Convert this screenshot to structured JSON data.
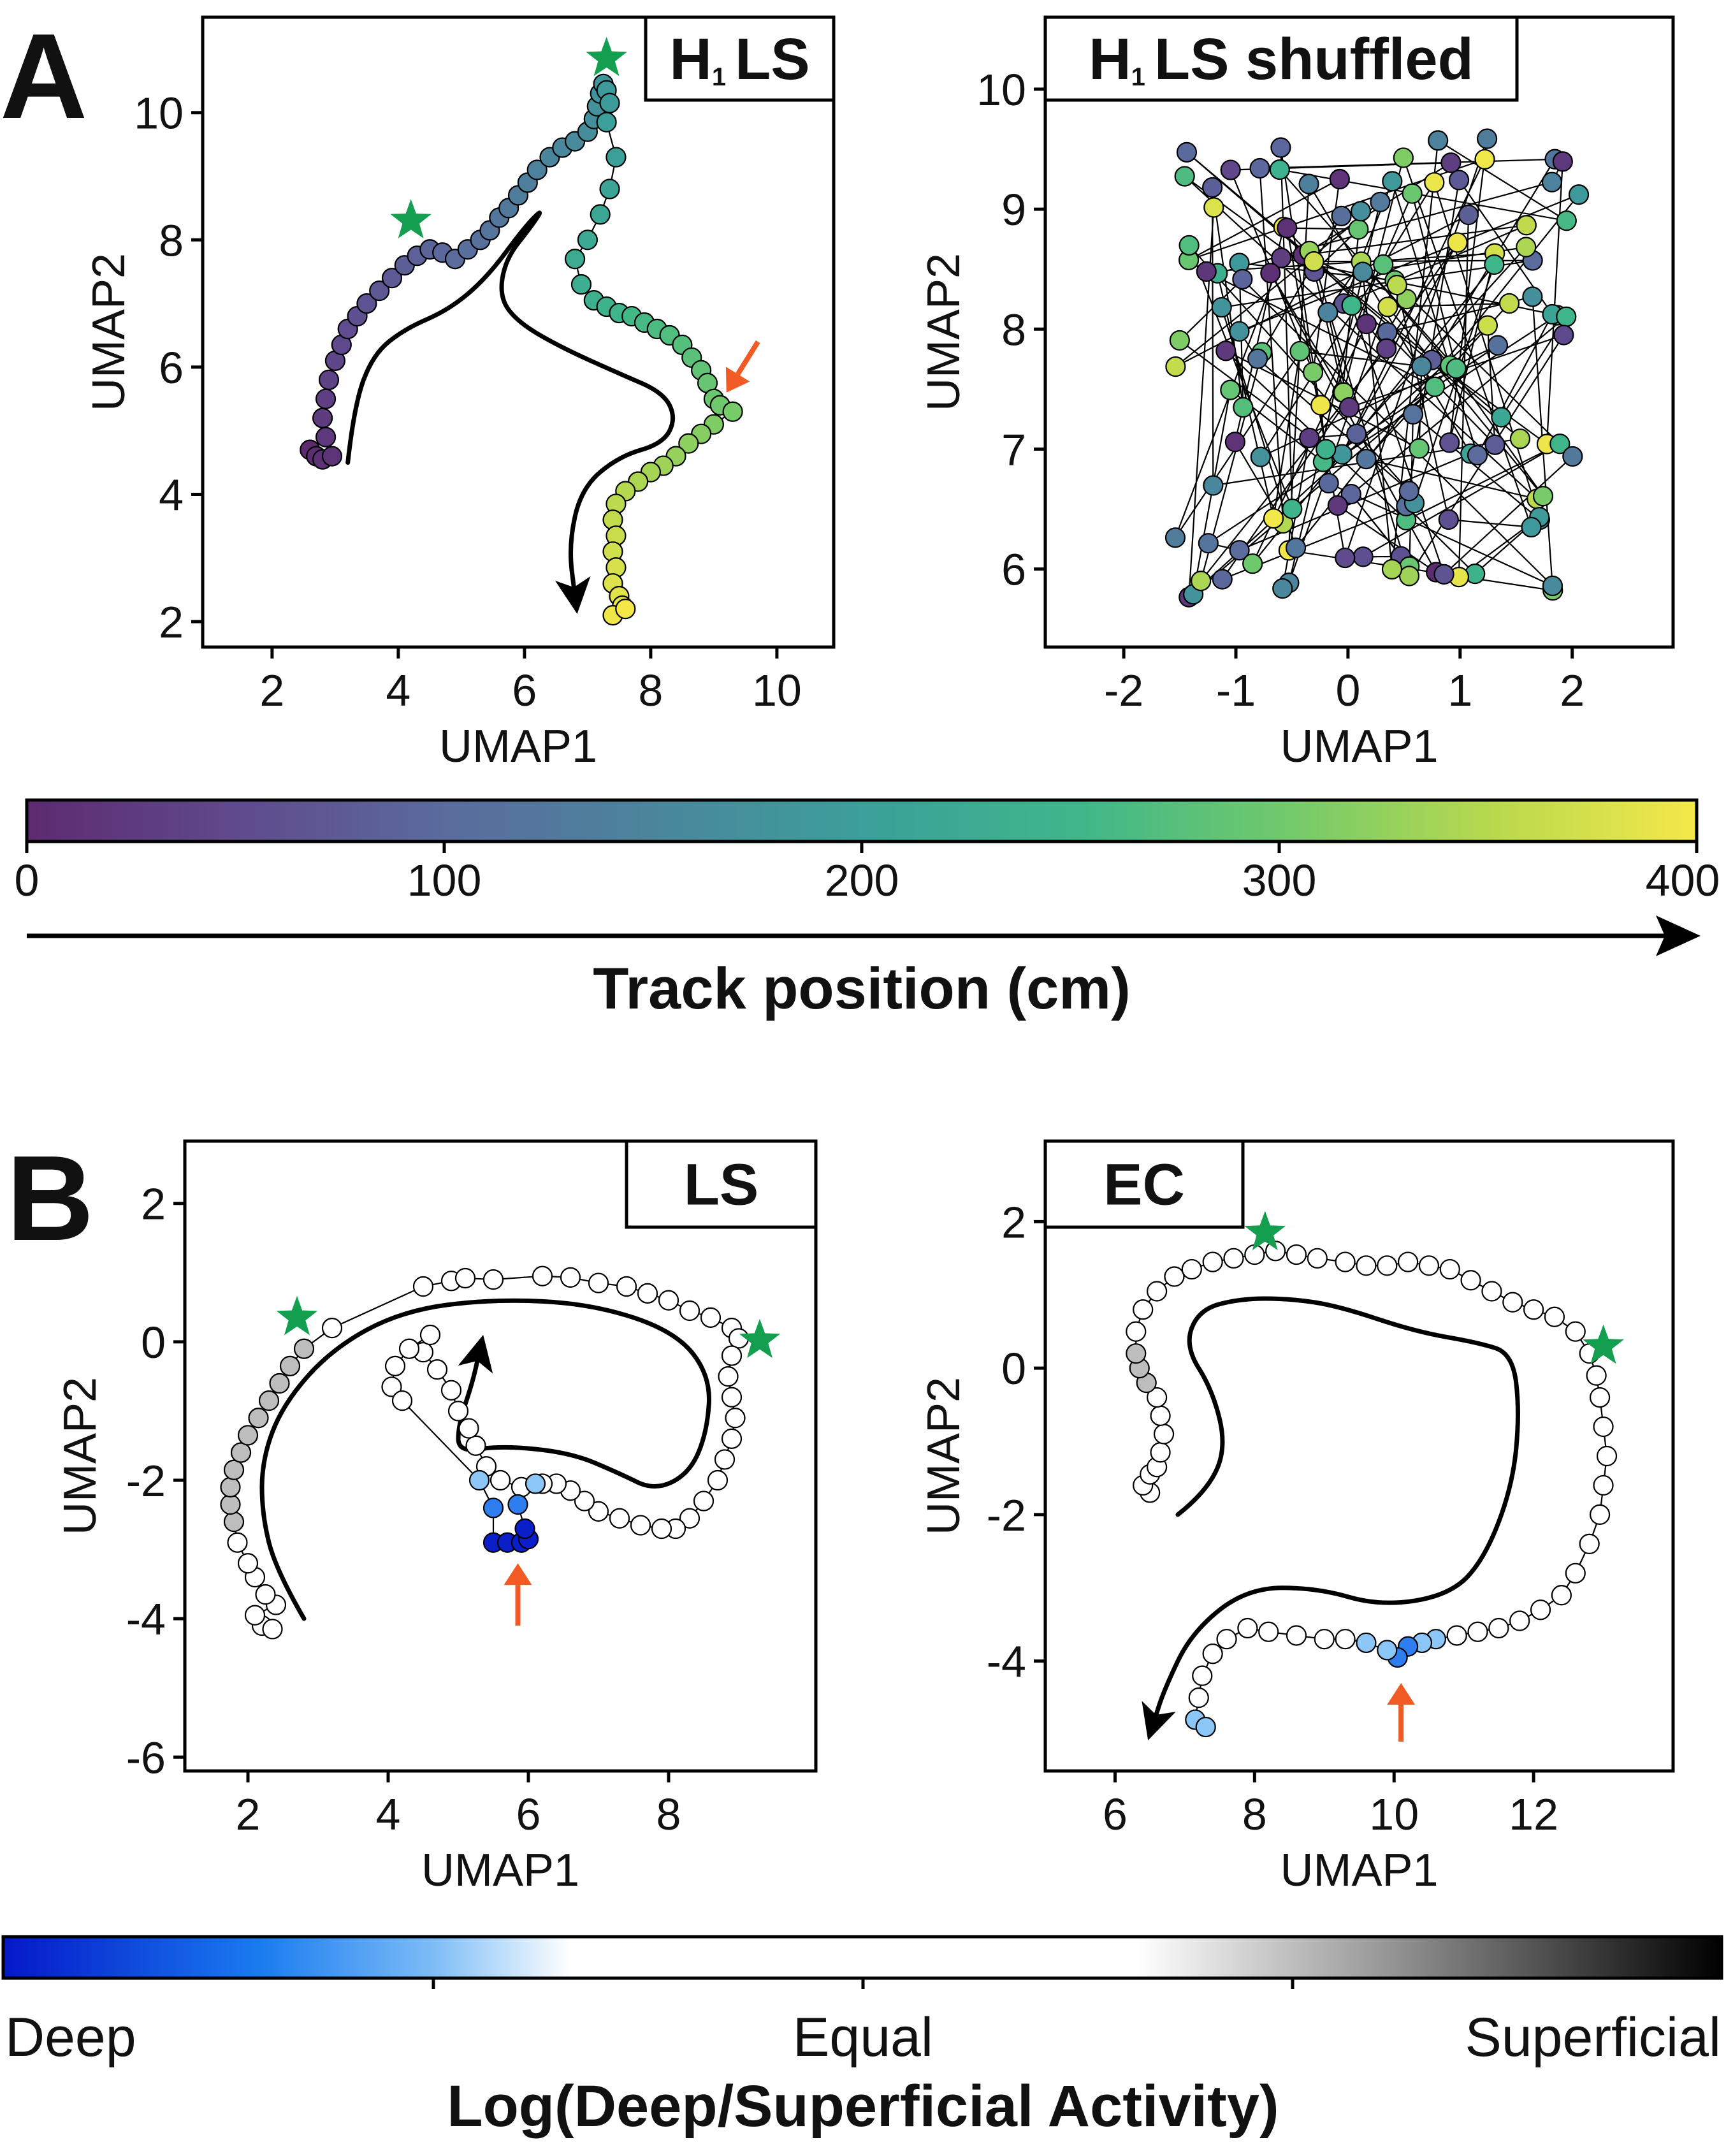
{
  "panel_labels": {
    "a": "A",
    "b": "B"
  },
  "colors": {
    "star": "#139e50",
    "arrow": "#f15a24",
    "trajectory": "#000000"
  },
  "colorbars": {
    "track": {
      "ticks": [
        "0",
        "100",
        "200",
        "300",
        "400"
      ],
      "label": "Track position (cm)",
      "range": [
        0,
        400
      ],
      "colormap": "viridis"
    },
    "ratio": {
      "ticks": [
        "Deep",
        "Equal",
        "Superficial"
      ],
      "label": "Log(Deep/Superficial Activity)"
    }
  },
  "chart_data": [
    {
      "id": "h1ls",
      "type": "scatter",
      "title_main": "H",
      "title_sub": "1",
      "title_rest": "LS",
      "xlabel": "UMAP1",
      "ylabel": "UMAP2",
      "xlim": [
        0.9,
        10.9
      ],
      "ylim": [
        1.6,
        11.5
      ],
      "xticks": [
        2,
        4,
        6,
        8,
        10
      ],
      "yticks": [
        2,
        4,
        6,
        8,
        10
      ],
      "color_by": "track position",
      "connected": true,
      "points": [
        [
          2.6,
          4.7
        ],
        [
          2.7,
          4.6
        ],
        [
          2.8,
          4.55
        ],
        [
          2.95,
          4.6
        ],
        [
          2.85,
          4.9
        ],
        [
          2.8,
          5.2
        ],
        [
          2.85,
          5.5
        ],
        [
          2.9,
          5.8
        ],
        [
          3.0,
          6.1
        ],
        [
          3.1,
          6.35
        ],
        [
          3.2,
          6.6
        ],
        [
          3.35,
          6.8
        ],
        [
          3.5,
          7.0
        ],
        [
          3.7,
          7.2
        ],
        [
          3.9,
          7.4
        ],
        [
          4.1,
          7.6
        ],
        [
          4.3,
          7.75
        ],
        [
          4.5,
          7.85
        ],
        [
          4.7,
          7.8
        ],
        [
          4.9,
          7.7
        ],
        [
          5.1,
          7.85
        ],
        [
          5.3,
          8.0
        ],
        [
          5.45,
          8.15
        ],
        [
          5.6,
          8.35
        ],
        [
          5.75,
          8.5
        ],
        [
          5.9,
          8.7
        ],
        [
          6.05,
          8.9
        ],
        [
          6.2,
          9.1
        ],
        [
          6.4,
          9.3
        ],
        [
          6.6,
          9.45
        ],
        [
          6.8,
          9.55
        ],
        [
          7.0,
          9.7
        ],
        [
          7.1,
          9.9
        ],
        [
          7.15,
          10.1
        ],
        [
          7.2,
          10.3
        ],
        [
          7.25,
          10.45
        ],
        [
          7.3,
          10.35
        ],
        [
          7.35,
          10.15
        ],
        [
          7.3,
          9.85
        ],
        [
          7.45,
          9.3
        ],
        [
          7.35,
          8.8
        ],
        [
          7.2,
          8.4
        ],
        [
          7.0,
          8.0
        ],
        [
          6.8,
          7.7
        ],
        [
          6.9,
          7.3
        ],
        [
          7.1,
          7.05
        ],
        [
          7.3,
          6.95
        ],
        [
          7.5,
          6.85
        ],
        [
          7.7,
          6.8
        ],
        [
          7.9,
          6.7
        ],
        [
          8.1,
          6.6
        ],
        [
          8.3,
          6.5
        ],
        [
          8.5,
          6.35
        ],
        [
          8.65,
          6.15
        ],
        [
          8.8,
          5.95
        ],
        [
          8.9,
          5.75
        ],
        [
          9.0,
          5.5
        ],
        [
          9.1,
          5.4
        ],
        [
          9.3,
          5.3
        ],
        [
          9.0,
          5.1
        ],
        [
          8.8,
          4.95
        ],
        [
          8.6,
          4.8
        ],
        [
          8.4,
          4.6
        ],
        [
          8.2,
          4.45
        ],
        [
          8.0,
          4.35
        ],
        [
          7.8,
          4.2
        ],
        [
          7.6,
          4.05
        ],
        [
          7.45,
          3.85
        ],
        [
          7.4,
          3.6
        ],
        [
          7.45,
          3.35
        ],
        [
          7.4,
          3.1
        ],
        [
          7.45,
          2.85
        ],
        [
          7.4,
          2.6
        ],
        [
          7.5,
          2.4
        ],
        [
          7.55,
          2.25
        ],
        [
          7.4,
          2.1
        ],
        [
          7.6,
          2.2
        ]
      ],
      "stars": [
        [
          4.2,
          8.3
        ],
        [
          7.3,
          10.85
        ]
      ],
      "arrow": {
        "from": [
          9.7,
          6.4
        ],
        "to": [
          9.2,
          5.6
        ]
      },
      "trajectory": [
        [
          3.2,
          4.5
        ],
        [
          3.3,
          5.4
        ],
        [
          3.6,
          6.2
        ],
        [
          4.1,
          6.6
        ],
        [
          4.8,
          6.9
        ],
        [
          5.4,
          7.4
        ],
        [
          6.0,
          8.2
        ],
        [
          6.3,
          8.5
        ],
        [
          6.1,
          8.2
        ],
        [
          5.7,
          7.7
        ],
        [
          5.6,
          7.1
        ],
        [
          5.9,
          6.7
        ],
        [
          6.6,
          6.3
        ],
        [
          7.5,
          5.9
        ],
        [
          8.2,
          5.6
        ],
        [
          8.4,
          5.2
        ],
        [
          8.2,
          4.8
        ],
        [
          7.5,
          4.6
        ],
        [
          6.9,
          4.1
        ],
        [
          6.7,
          3.2
        ],
        [
          6.8,
          2.4
        ]
      ]
    },
    {
      "id": "h1ls_shuffled",
      "type": "scatter",
      "title_main": "H",
      "title_sub": "1",
      "title_rest": "LS shuffled",
      "xlabel": "UMAP1",
      "ylabel": "UMAP2",
      "xlim": [
        -2.7,
        2.9
      ],
      "ylim": [
        5.35,
        10.6
      ],
      "xticks": [
        -2,
        -1,
        0,
        1,
        2
      ],
      "yticks": [
        6,
        7,
        8,
        9,
        10
      ],
      "color_by": "track position (shuffled order)",
      "connected": true
    },
    {
      "id": "ls",
      "type": "scatter",
      "title": "LS",
      "xlabel": "UMAP1",
      "ylabel": "UMAP2",
      "xlim": [
        1.1,
        10.1
      ],
      "ylim": [
        -6.2,
        2.9
      ],
      "xticks": [
        2,
        4,
        6,
        8
      ],
      "yticks": [
        -6,
        -4,
        -2,
        0,
        2
      ],
      "color_by": "log deep/superficial activity",
      "connected": true,
      "points": [
        [
          2.2,
          -4.1
        ],
        [
          2.35,
          -4.15
        ],
        [
          2.1,
          -3.95
        ],
        [
          2.4,
          -3.8
        ],
        [
          2.25,
          -3.65
        ],
        [
          2.1,
          -3.4
        ],
        [
          2.0,
          -3.2
        ],
        [
          1.85,
          -2.9
        ],
        [
          1.8,
          -2.6
        ],
        [
          1.75,
          -2.35
        ],
        [
          1.75,
          -2.1
        ],
        [
          1.8,
          -1.85
        ],
        [
          1.9,
          -1.6
        ],
        [
          2.0,
          -1.35
        ],
        [
          2.15,
          -1.1
        ],
        [
          2.3,
          -0.85
        ],
        [
          2.45,
          -0.6
        ],
        [
          2.6,
          -0.35
        ],
        [
          2.8,
          -0.1
        ],
        [
          3.2,
          0.2
        ],
        [
          4.5,
          0.8
        ],
        [
          4.9,
          0.88
        ],
        [
          5.1,
          0.92
        ],
        [
          5.5,
          0.9
        ],
        [
          6.2,
          0.95
        ],
        [
          6.6,
          0.93
        ],
        [
          7.0,
          0.85
        ],
        [
          7.4,
          0.8
        ],
        [
          7.7,
          0.7
        ],
        [
          8.0,
          0.6
        ],
        [
          8.3,
          0.45
        ],
        [
          8.6,
          0.35
        ],
        [
          8.9,
          0.2
        ],
        [
          9.0,
          0.05
        ],
        [
          8.9,
          -0.2
        ],
        [
          8.85,
          -0.5
        ],
        [
          8.9,
          -0.8
        ],
        [
          8.95,
          -1.1
        ],
        [
          8.9,
          -1.4
        ],
        [
          8.8,
          -1.7
        ],
        [
          8.7,
          -2.0
        ],
        [
          8.5,
          -2.3
        ],
        [
          8.3,
          -2.55
        ],
        [
          8.1,
          -2.7
        ],
        [
          7.9,
          -2.7
        ],
        [
          7.6,
          -2.65
        ],
        [
          7.3,
          -2.55
        ],
        [
          7.0,
          -2.45
        ],
        [
          6.8,
          -2.3
        ],
        [
          6.6,
          -2.15
        ],
        [
          6.4,
          -2.05
        ],
        [
          6.2,
          -2.05
        ],
        [
          5.9,
          -2.1
        ],
        [
          5.6,
          -2.0
        ],
        [
          5.4,
          -1.8
        ],
        [
          5.25,
          -1.5
        ],
        [
          5.15,
          -1.25
        ],
        [
          5.0,
          -1.0
        ],
        [
          4.9,
          -0.7
        ],
        [
          4.7,
          -0.4
        ],
        [
          4.5,
          -0.15
        ],
        [
          4.6,
          0.1
        ],
        [
          4.3,
          -0.1
        ],
        [
          4.1,
          -0.35
        ],
        [
          4.05,
          -0.65
        ],
        [
          4.2,
          -0.85
        ],
        [
          5.3,
          -2.0
        ],
        [
          5.5,
          -2.4
        ],
        [
          5.5,
          -2.9
        ],
        [
          5.7,
          -2.9
        ],
        [
          5.9,
          -2.9
        ],
        [
          6.0,
          -2.85
        ],
        [
          5.95,
          -2.7
        ],
        [
          5.85,
          -2.35
        ],
        [
          6.1,
          -2.05
        ]
      ],
      "point_shades": [
        "w",
        "w",
        "w",
        "w",
        "w",
        "w",
        "w",
        "w",
        "g",
        "g",
        "g",
        "g",
        "g",
        "g",
        "g",
        "g",
        "g",
        "g",
        "g",
        "w",
        "w",
        "w",
        "w",
        "w",
        "w",
        "w",
        "w",
        "w",
        "w",
        "w",
        "w",
        "w",
        "w",
        "w",
        "w",
        "w",
        "w",
        "w",
        "w",
        "w",
        "w",
        "w",
        "w",
        "w",
        "w",
        "w",
        "w",
        "w",
        "w",
        "w",
        "w",
        "w",
        "w",
        "w",
        "w",
        "w",
        "w",
        "w",
        "w",
        "w",
        "w",
        "w",
        "w",
        "w",
        "w",
        "w",
        "lb",
        "b",
        "db",
        "db",
        "db",
        "db",
        "db",
        "b",
        "lb"
      ],
      "stars": [
        [
          2.7,
          0.35
        ],
        [
          9.3,
          0.02
        ]
      ],
      "arrow": {
        "from": [
          5.85,
          -4.1
        ],
        "to": [
          5.85,
          -3.2
        ]
      },
      "trajectory": [
        [
          2.8,
          -4.0
        ],
        [
          2.4,
          -3.3
        ],
        [
          2.2,
          -2.5
        ],
        [
          2.2,
          -1.7
        ],
        [
          2.5,
          -0.9
        ],
        [
          3.2,
          -0.1
        ],
        [
          4.2,
          0.45
        ],
        [
          5.5,
          0.62
        ],
        [
          6.9,
          0.55
        ],
        [
          8.1,
          0.15
        ],
        [
          8.6,
          -0.5
        ],
        [
          8.55,
          -1.3
        ],
        [
          8.3,
          -1.9
        ],
        [
          7.8,
          -2.15
        ],
        [
          7.3,
          -1.9
        ],
        [
          6.6,
          -1.6
        ],
        [
          5.6,
          -1.5
        ],
        [
          5.0,
          -1.6
        ],
        [
          5.0,
          -1.2
        ],
        [
          5.2,
          -0.6
        ],
        [
          5.3,
          -0.15
        ]
      ]
    },
    {
      "id": "ec",
      "type": "scatter",
      "title": "EC",
      "xlabel": "UMAP1",
      "ylabel": "UMAP2",
      "xlim": [
        5.0,
        14.0
      ],
      "ylim": [
        -5.5,
        3.1
      ],
      "xticks": [
        6,
        8,
        10,
        12
      ],
      "yticks": [
        -4,
        -2,
        0,
        2
      ],
      "color_by": "log deep/superficial activity",
      "connected": true,
      "points": [
        [
          6.5,
          -1.7
        ],
        [
          6.4,
          -1.6
        ],
        [
          6.5,
          -1.45
        ],
        [
          6.6,
          -1.35
        ],
        [
          6.65,
          -1.15
        ],
        [
          6.7,
          -0.9
        ],
        [
          6.65,
          -0.65
        ],
        [
          6.6,
          -0.4
        ],
        [
          6.45,
          -0.2
        ],
        [
          6.35,
          0.0
        ],
        [
          6.3,
          0.2
        ],
        [
          6.3,
          0.5
        ],
        [
          6.4,
          0.8
        ],
        [
          6.6,
          1.05
        ],
        [
          6.85,
          1.25
        ],
        [
          7.1,
          1.35
        ],
        [
          7.4,
          1.45
        ],
        [
          7.7,
          1.5
        ],
        [
          8.0,
          1.55
        ],
        [
          8.3,
          1.6
        ],
        [
          8.6,
          1.55
        ],
        [
          8.9,
          1.5
        ],
        [
          9.3,
          1.45
        ],
        [
          9.6,
          1.4
        ],
        [
          9.9,
          1.4
        ],
        [
          10.2,
          1.45
        ],
        [
          10.5,
          1.4
        ],
        [
          10.8,
          1.35
        ],
        [
          11.1,
          1.2
        ],
        [
          11.4,
          1.05
        ],
        [
          11.7,
          0.9
        ],
        [
          12.0,
          0.8
        ],
        [
          12.3,
          0.7
        ],
        [
          12.6,
          0.5
        ],
        [
          12.8,
          0.2
        ],
        [
          12.9,
          -0.1
        ],
        [
          12.95,
          -0.4
        ],
        [
          13.0,
          -0.8
        ],
        [
          13.05,
          -1.2
        ],
        [
          13.0,
          -1.6
        ],
        [
          12.95,
          -2.0
        ],
        [
          12.8,
          -2.4
        ],
        [
          12.6,
          -2.8
        ],
        [
          12.4,
          -3.1
        ],
        [
          12.1,
          -3.3
        ],
        [
          11.8,
          -3.45
        ],
        [
          11.5,
          -3.55
        ],
        [
          11.2,
          -3.6
        ],
        [
          10.9,
          -3.65
        ],
        [
          10.6,
          -3.7
        ],
        [
          10.4,
          -3.75
        ],
        [
          10.2,
          -3.8
        ],
        [
          10.05,
          -3.95
        ],
        [
          9.9,
          -3.85
        ],
        [
          9.6,
          -3.75
        ],
        [
          9.3,
          -3.7
        ],
        [
          9.0,
          -3.7
        ],
        [
          8.6,
          -3.65
        ],
        [
          8.2,
          -3.6
        ],
        [
          7.9,
          -3.55
        ],
        [
          7.6,
          -3.7
        ],
        [
          7.4,
          -3.9
        ],
        [
          7.25,
          -4.2
        ],
        [
          7.2,
          -4.5
        ],
        [
          7.15,
          -4.8
        ],
        [
          7.3,
          -4.9
        ]
      ],
      "point_shades": [
        "w",
        "w",
        "w",
        "w",
        "w",
        "w",
        "w",
        "w",
        "g",
        "g",
        "g",
        "w",
        "w",
        "w",
        "w",
        "w",
        "w",
        "w",
        "w",
        "w",
        "w",
        "w",
        "w",
        "w",
        "w",
        "w",
        "w",
        "w",
        "w",
        "w",
        "w",
        "w",
        "w",
        "w",
        "w",
        "w",
        "w",
        "w",
        "w",
        "w",
        "w",
        "w",
        "w",
        "w",
        "w",
        "w",
        "w",
        "w",
        "w",
        "lb",
        "lb",
        "b",
        "b",
        "lb",
        "lb",
        "w",
        "w",
        "w",
        "w",
        "w",
        "w",
        "w",
        "w",
        "w",
        "lb",
        "lb"
      ],
      "stars": [
        [
          8.15,
          1.85
        ],
        [
          13.0,
          0.3
        ]
      ],
      "arrow": {
        "from": [
          10.1,
          -5.1
        ],
        "to": [
          10.1,
          -4.3
        ]
      },
      "trajectory": [
        [
          6.9,
          -2.0
        ],
        [
          7.3,
          -1.7
        ],
        [
          7.6,
          -1.1
        ],
        [
          7.4,
          -0.3
        ],
        [
          7.0,
          0.3
        ],
        [
          7.2,
          0.8
        ],
        [
          7.8,
          0.95
        ],
        [
          8.5,
          0.95
        ],
        [
          9.2,
          0.85
        ],
        [
          10.3,
          0.5
        ],
        [
          11.2,
          0.35
        ],
        [
          11.7,
          0.2
        ],
        [
          11.8,
          -0.6
        ],
        [
          11.7,
          -1.6
        ],
        [
          11.3,
          -2.6
        ],
        [
          10.8,
          -3.1
        ],
        [
          9.8,
          -3.25
        ],
        [
          8.9,
          -3.0
        ],
        [
          7.9,
          -3.0
        ],
        [
          7.1,
          -3.6
        ],
        [
          6.7,
          -4.4
        ],
        [
          6.55,
          -4.85
        ]
      ]
    }
  ]
}
